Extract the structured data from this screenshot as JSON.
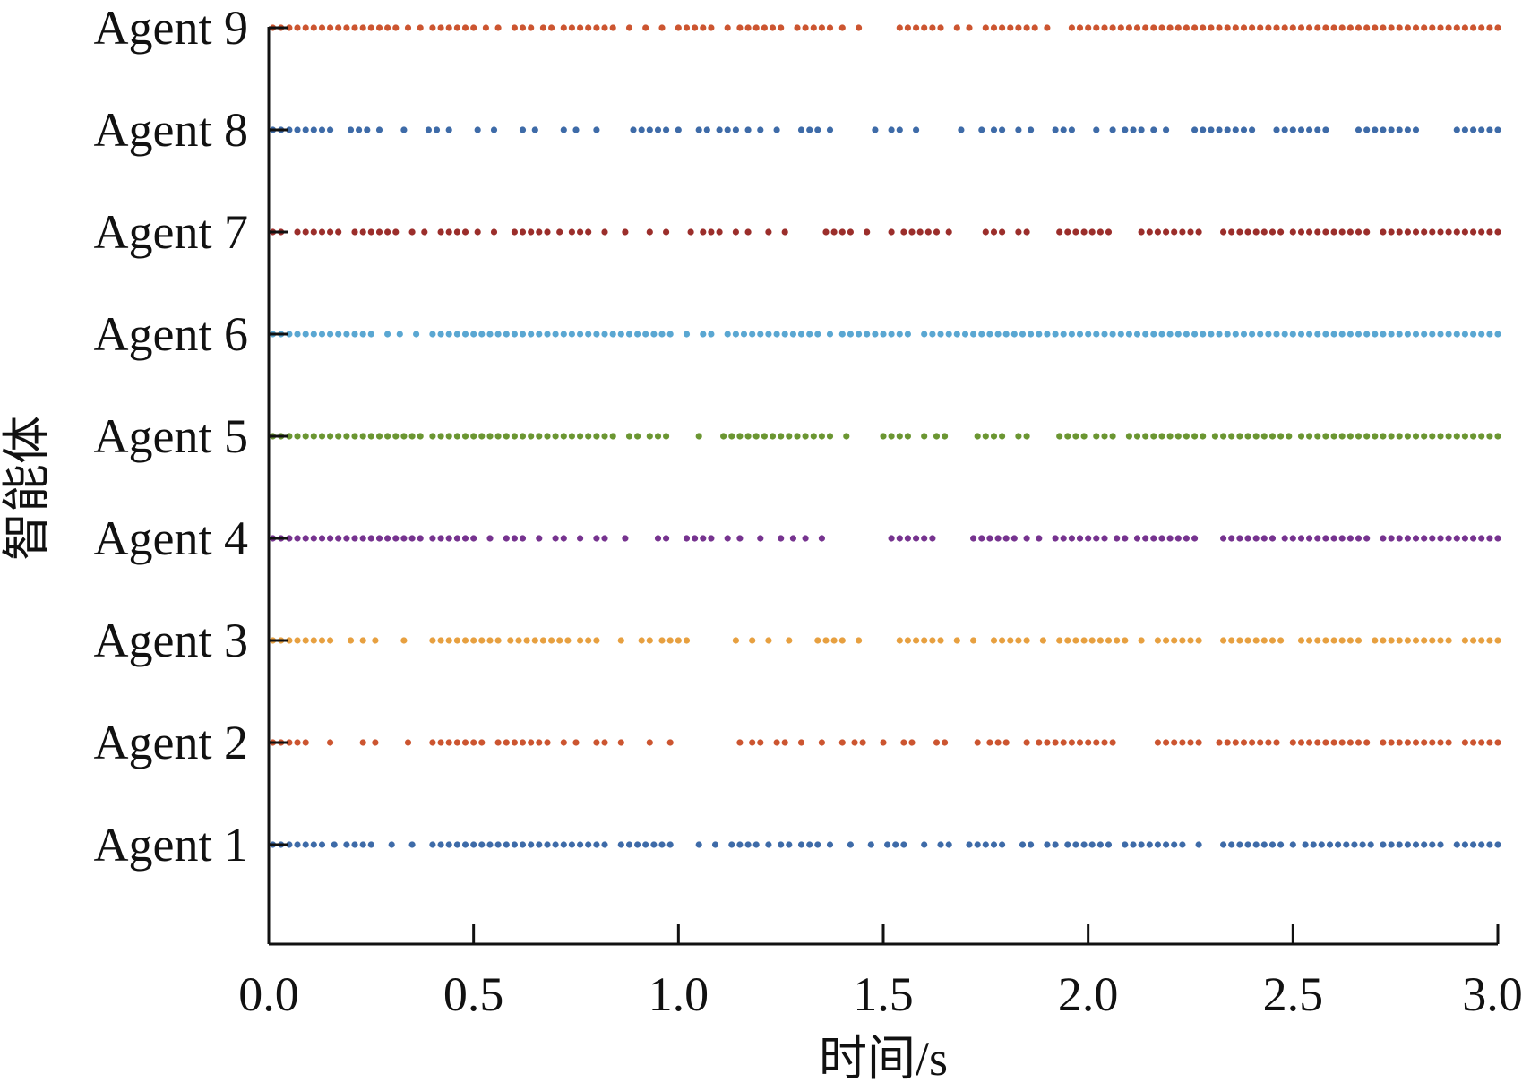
{
  "chart_data": {
    "type": "scatter",
    "title": "",
    "xlabel": "时间/s",
    "ylabel": "智能体",
    "xlim": [
      0,
      3.0
    ],
    "x_ticks": [
      "0.0",
      "0.5",
      "1.0",
      "1.5",
      "2.0",
      "2.5",
      "3.0"
    ],
    "grid": false,
    "legend": "none",
    "categories": [
      "Agent 1",
      "Agent 2",
      "Agent 3",
      "Agent 4",
      "Agent 5",
      "Agent 6",
      "Agent 7",
      "Agent 8",
      "Agent 9"
    ],
    "series": [
      {
        "row_label": "Agent 1",
        "color": "#3E6BA8",
        "values": [
          0.01,
          0.03,
          0.05,
          0.07,
          0.09,
          0.11,
          0.13,
          0.16,
          0.19,
          0.21,
          0.23,
          0.25,
          0.3,
          0.35,
          0.4,
          0.42,
          0.44,
          0.46,
          0.48,
          0.5,
          0.52,
          0.54,
          0.56,
          0.58,
          0.6,
          0.62,
          0.64,
          0.66,
          0.68,
          0.7,
          0.72,
          0.74,
          0.76,
          0.78,
          0.8,
          0.82,
          0.86,
          0.88,
          0.9,
          0.92,
          0.94,
          0.96,
          0.98,
          1.05,
          1.09,
          1.13,
          1.15,
          1.17,
          1.19,
          1.22,
          1.25,
          1.27,
          1.3,
          1.32,
          1.34,
          1.37,
          1.42,
          1.47,
          1.51,
          1.53,
          1.55,
          1.6,
          1.64,
          1.66,
          1.71,
          1.73,
          1.75,
          1.77,
          1.79,
          1.84,
          1.86,
          1.9,
          1.92,
          1.95,
          1.97,
          1.99,
          2.01,
          2.03,
          2.05,
          2.09,
          2.11,
          2.13,
          2.15,
          2.17,
          2.19,
          2.21,
          2.23,
          2.27,
          2.33,
          2.35,
          2.37,
          2.39,
          2.41,
          2.43,
          2.45,
          2.47,
          2.5,
          2.53,
          2.55,
          2.57,
          2.59,
          2.61,
          2.63,
          2.65,
          2.67,
          2.69,
          2.72,
          2.74,
          2.76,
          2.78,
          2.8,
          2.82,
          2.84,
          2.86,
          2.9,
          2.92,
          2.94,
          2.96,
          2.98,
          3.0
        ]
      },
      {
        "row_label": "Agent 2",
        "color": "#CC5530",
        "values": [
          0.01,
          0.03,
          0.05,
          0.07,
          0.09,
          0.15,
          0.23,
          0.26,
          0.34,
          0.4,
          0.42,
          0.44,
          0.46,
          0.48,
          0.5,
          0.52,
          0.56,
          0.58,
          0.6,
          0.62,
          0.64,
          0.66,
          0.68,
          0.72,
          0.75,
          0.8,
          0.82,
          0.86,
          0.93,
          0.98,
          1.15,
          1.18,
          1.2,
          1.24,
          1.26,
          1.3,
          1.35,
          1.4,
          1.43,
          1.45,
          1.5,
          1.55,
          1.57,
          1.63,
          1.65,
          1.73,
          1.76,
          1.78,
          1.8,
          1.85,
          1.88,
          1.9,
          1.92,
          1.94,
          1.96,
          1.98,
          2.0,
          2.02,
          2.04,
          2.06,
          2.17,
          2.19,
          2.21,
          2.23,
          2.25,
          2.27,
          2.32,
          2.34,
          2.36,
          2.38,
          2.4,
          2.42,
          2.44,
          2.46,
          2.5,
          2.52,
          2.54,
          2.56,
          2.58,
          2.6,
          2.62,
          2.64,
          2.66,
          2.68,
          2.72,
          2.74,
          2.76,
          2.78,
          2.8,
          2.82,
          2.84,
          2.86,
          2.88,
          2.92,
          2.94,
          2.96,
          2.98,
          3.0
        ]
      },
      {
        "row_label": "Agent 3",
        "color": "#E7A040",
        "values": [
          0.01,
          0.03,
          0.05,
          0.07,
          0.09,
          0.11,
          0.13,
          0.15,
          0.2,
          0.23,
          0.26,
          0.33,
          0.4,
          0.42,
          0.44,
          0.46,
          0.48,
          0.5,
          0.52,
          0.54,
          0.56,
          0.59,
          0.61,
          0.63,
          0.65,
          0.67,
          0.69,
          0.71,
          0.73,
          0.76,
          0.78,
          0.8,
          0.86,
          0.91,
          0.93,
          0.96,
          0.98,
          1.0,
          1.02,
          1.14,
          1.18,
          1.22,
          1.27,
          1.34,
          1.36,
          1.38,
          1.4,
          1.44,
          1.54,
          1.56,
          1.58,
          1.6,
          1.62,
          1.64,
          1.68,
          1.72,
          1.77,
          1.79,
          1.81,
          1.83,
          1.85,
          1.89,
          1.93,
          1.95,
          1.97,
          1.99,
          2.01,
          2.03,
          2.05,
          2.07,
          2.09,
          2.13,
          2.17,
          2.19,
          2.21,
          2.23,
          2.25,
          2.27,
          2.33,
          2.35,
          2.37,
          2.39,
          2.41,
          2.43,
          2.45,
          2.47,
          2.52,
          2.54,
          2.56,
          2.58,
          2.6,
          2.62,
          2.64,
          2.66,
          2.7,
          2.72,
          2.74,
          2.76,
          2.78,
          2.8,
          2.82,
          2.84,
          2.86,
          2.88,
          2.92,
          2.94,
          2.96,
          2.98,
          3.0
        ]
      },
      {
        "row_label": "Agent 4",
        "color": "#76338F",
        "values": [
          0.01,
          0.03,
          0.05,
          0.07,
          0.09,
          0.11,
          0.13,
          0.15,
          0.17,
          0.19,
          0.21,
          0.23,
          0.25,
          0.27,
          0.29,
          0.31,
          0.33,
          0.35,
          0.37,
          0.4,
          0.42,
          0.44,
          0.46,
          0.48,
          0.5,
          0.54,
          0.58,
          0.6,
          0.62,
          0.66,
          0.7,
          0.72,
          0.76,
          0.8,
          0.82,
          0.87,
          0.95,
          0.97,
          1.02,
          1.04,
          1.06,
          1.08,
          1.12,
          1.15,
          1.2,
          1.25,
          1.28,
          1.31,
          1.35,
          1.52,
          1.54,
          1.56,
          1.58,
          1.6,
          1.62,
          1.72,
          1.74,
          1.76,
          1.78,
          1.8,
          1.82,
          1.85,
          1.88,
          1.92,
          1.94,
          1.96,
          1.98,
          2.0,
          2.02,
          2.04,
          2.07,
          2.09,
          2.12,
          2.14,
          2.16,
          2.18,
          2.2,
          2.22,
          2.24,
          2.26,
          2.33,
          2.35,
          2.37,
          2.39,
          2.41,
          2.43,
          2.45,
          2.48,
          2.5,
          2.52,
          2.54,
          2.56,
          2.58,
          2.6,
          2.62,
          2.64,
          2.66,
          2.68,
          2.72,
          2.74,
          2.76,
          2.78,
          2.8,
          2.82,
          2.84,
          2.86,
          2.88,
          2.9,
          2.92,
          2.94,
          2.96,
          2.98,
          3.0
        ]
      },
      {
        "row_label": "Agent 5",
        "color": "#6B9632",
        "values": [
          0.01,
          0.03,
          0.05,
          0.07,
          0.09,
          0.11,
          0.13,
          0.15,
          0.17,
          0.19,
          0.21,
          0.23,
          0.25,
          0.27,
          0.29,
          0.31,
          0.33,
          0.35,
          0.37,
          0.4,
          0.42,
          0.44,
          0.46,
          0.48,
          0.5,
          0.52,
          0.54,
          0.56,
          0.58,
          0.6,
          0.62,
          0.64,
          0.66,
          0.68,
          0.7,
          0.72,
          0.74,
          0.76,
          0.78,
          0.8,
          0.82,
          0.84,
          0.88,
          0.9,
          0.93,
          0.95,
          0.97,
          1.05,
          1.11,
          1.13,
          1.15,
          1.17,
          1.19,
          1.21,
          1.23,
          1.25,
          1.27,
          1.29,
          1.31,
          1.33,
          1.35,
          1.37,
          1.41,
          1.5,
          1.52,
          1.54,
          1.56,
          1.6,
          1.63,
          1.65,
          1.73,
          1.75,
          1.77,
          1.79,
          1.83,
          1.85,
          1.93,
          1.95,
          1.97,
          1.99,
          2.02,
          2.04,
          2.06,
          2.1,
          2.12,
          2.14,
          2.16,
          2.18,
          2.2,
          2.22,
          2.24,
          2.26,
          2.28,
          2.31,
          2.33,
          2.35,
          2.37,
          2.39,
          2.41,
          2.43,
          2.45,
          2.47,
          2.49,
          2.52,
          2.54,
          2.56,
          2.58,
          2.6,
          2.62,
          2.64,
          2.66,
          2.68,
          2.7,
          2.72,
          2.74,
          2.76,
          2.78,
          2.8,
          2.82,
          2.84,
          2.86,
          2.88,
          2.9,
          2.92,
          2.94,
          2.96,
          2.98,
          3.0
        ]
      },
      {
        "row_label": "Agent 6",
        "color": "#5AA7D2",
        "values": [
          0.01,
          0.03,
          0.05,
          0.07,
          0.09,
          0.11,
          0.13,
          0.15,
          0.17,
          0.19,
          0.21,
          0.23,
          0.25,
          0.29,
          0.32,
          0.36,
          0.4,
          0.42,
          0.44,
          0.46,
          0.48,
          0.5,
          0.52,
          0.54,
          0.56,
          0.58,
          0.6,
          0.62,
          0.64,
          0.66,
          0.68,
          0.7,
          0.72,
          0.74,
          0.76,
          0.78,
          0.8,
          0.82,
          0.84,
          0.86,
          0.88,
          0.9,
          0.92,
          0.94,
          0.96,
          0.98,
          1.02,
          1.06,
          1.08,
          1.12,
          1.14,
          1.16,
          1.18,
          1.2,
          1.22,
          1.24,
          1.26,
          1.28,
          1.3,
          1.32,
          1.34,
          1.37,
          1.4,
          1.42,
          1.44,
          1.46,
          1.48,
          1.5,
          1.52,
          1.54,
          1.56,
          1.6,
          1.62,
          1.64,
          1.66,
          1.68,
          1.7,
          1.72,
          1.74,
          1.76,
          1.78,
          1.8,
          1.82,
          1.84,
          1.86,
          1.88,
          1.9,
          1.92,
          1.94,
          1.96,
          1.98,
          2.0,
          2.02,
          2.04,
          2.06,
          2.08,
          2.1,
          2.12,
          2.14,
          2.16,
          2.18,
          2.2,
          2.22,
          2.24,
          2.26,
          2.28,
          2.3,
          2.32,
          2.34,
          2.36,
          2.38,
          2.4,
          2.42,
          2.44,
          2.46,
          2.48,
          2.5,
          2.52,
          2.54,
          2.56,
          2.58,
          2.6,
          2.62,
          2.64,
          2.66,
          2.68,
          2.7,
          2.72,
          2.74,
          2.76,
          2.78,
          2.8,
          2.82,
          2.84,
          2.86,
          2.88,
          2.9,
          2.92,
          2.94,
          2.96,
          2.98,
          3.0
        ]
      },
      {
        "row_label": "Agent 7",
        "color": "#9B2E2B",
        "values": [
          0.01,
          0.03,
          0.07,
          0.09,
          0.11,
          0.13,
          0.15,
          0.17,
          0.21,
          0.23,
          0.25,
          0.27,
          0.29,
          0.31,
          0.35,
          0.38,
          0.42,
          0.44,
          0.46,
          0.48,
          0.51,
          0.55,
          0.6,
          0.62,
          0.64,
          0.66,
          0.68,
          0.71,
          0.74,
          0.76,
          0.78,
          0.82,
          0.87,
          0.93,
          0.97,
          1.03,
          1.06,
          1.08,
          1.1,
          1.14,
          1.17,
          1.22,
          1.26,
          1.36,
          1.38,
          1.4,
          1.42,
          1.46,
          1.52,
          1.55,
          1.57,
          1.59,
          1.61,
          1.63,
          1.66,
          1.75,
          1.77,
          1.79,
          1.83,
          1.85,
          1.93,
          1.95,
          1.97,
          1.99,
          2.01,
          2.03,
          2.05,
          2.13,
          2.15,
          2.17,
          2.19,
          2.21,
          2.23,
          2.25,
          2.27,
          2.33,
          2.35,
          2.37,
          2.39,
          2.41,
          2.43,
          2.45,
          2.47,
          2.5,
          2.52,
          2.54,
          2.56,
          2.58,
          2.6,
          2.62,
          2.64,
          2.66,
          2.68,
          2.72,
          2.74,
          2.76,
          2.78,
          2.8,
          2.82,
          2.84,
          2.86,
          2.88,
          2.9,
          2.92,
          2.94,
          2.96,
          2.98,
          3.0
        ]
      },
      {
        "row_label": "Agent 8",
        "color": "#3E6BA8",
        "values": [
          0.01,
          0.03,
          0.05,
          0.07,
          0.09,
          0.11,
          0.13,
          0.15,
          0.2,
          0.22,
          0.24,
          0.27,
          0.33,
          0.39,
          0.41,
          0.44,
          0.51,
          0.55,
          0.62,
          0.65,
          0.72,
          0.75,
          0.8,
          0.89,
          0.91,
          0.93,
          0.95,
          0.97,
          1.0,
          1.05,
          1.07,
          1.1,
          1.12,
          1.14,
          1.17,
          1.2,
          1.24,
          1.3,
          1.32,
          1.34,
          1.37,
          1.48,
          1.52,
          1.54,
          1.58,
          1.69,
          1.74,
          1.77,
          1.79,
          1.83,
          1.86,
          1.92,
          1.94,
          1.96,
          2.02,
          2.06,
          2.09,
          2.11,
          2.13,
          2.16,
          2.19,
          2.26,
          2.28,
          2.3,
          2.32,
          2.34,
          2.36,
          2.38,
          2.4,
          2.46,
          2.48,
          2.5,
          2.52,
          2.54,
          2.56,
          2.58,
          2.66,
          2.68,
          2.7,
          2.72,
          2.74,
          2.76,
          2.78,
          2.8,
          2.9,
          2.92,
          2.94,
          2.96,
          2.98,
          3.0
        ]
      },
      {
        "row_label": "Agent 9",
        "color": "#CC5530",
        "values": [
          0.01,
          0.03,
          0.05,
          0.07,
          0.09,
          0.11,
          0.13,
          0.15,
          0.17,
          0.19,
          0.21,
          0.23,
          0.25,
          0.27,
          0.29,
          0.31,
          0.34,
          0.37,
          0.4,
          0.42,
          0.44,
          0.46,
          0.48,
          0.5,
          0.53,
          0.56,
          0.6,
          0.62,
          0.64,
          0.67,
          0.69,
          0.72,
          0.74,
          0.76,
          0.78,
          0.8,
          0.82,
          0.84,
          0.88,
          0.92,
          0.96,
          1.0,
          1.02,
          1.04,
          1.06,
          1.08,
          1.12,
          1.15,
          1.17,
          1.19,
          1.21,
          1.23,
          1.25,
          1.29,
          1.31,
          1.33,
          1.35,
          1.37,
          1.4,
          1.44,
          1.54,
          1.56,
          1.58,
          1.6,
          1.62,
          1.64,
          1.68,
          1.71,
          1.75,
          1.77,
          1.79,
          1.81,
          1.83,
          1.85,
          1.87,
          1.9,
          1.96,
          1.98,
          2.0,
          2.02,
          2.04,
          2.06,
          2.08,
          2.1,
          2.12,
          2.14,
          2.16,
          2.18,
          2.2,
          2.22,
          2.24,
          2.26,
          2.28,
          2.3,
          2.32,
          2.34,
          2.36,
          2.38,
          2.4,
          2.42,
          2.44,
          2.46,
          2.48,
          2.5,
          2.52,
          2.54,
          2.56,
          2.58,
          2.6,
          2.62,
          2.64,
          2.66,
          2.68,
          2.7,
          2.72,
          2.74,
          2.76,
          2.78,
          2.8,
          2.82,
          2.84,
          2.86,
          2.88,
          2.9,
          2.92,
          2.94,
          2.96,
          2.98,
          3.0
        ]
      }
    ]
  }
}
